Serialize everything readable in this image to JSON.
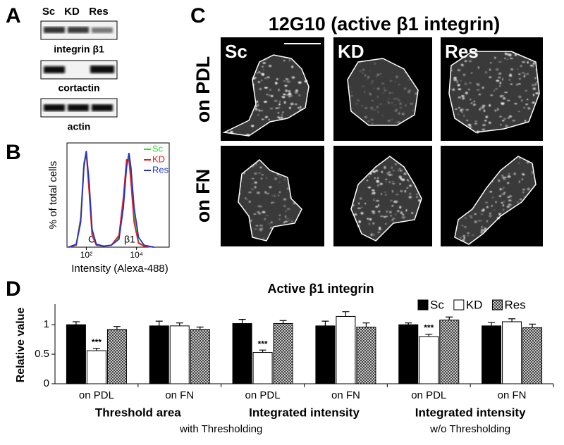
{
  "panel_labels": [
    "A",
    "B",
    "C",
    "D"
  ],
  "western_blot": {
    "lanes": [
      "Sc",
      "KD",
      "Res"
    ],
    "blots": [
      "integrin β1",
      "cortactin",
      "actin"
    ]
  },
  "microscopy": {
    "title": "12G10 (active β1 integrin)",
    "conditions": [
      "on PDL",
      "on FN"
    ],
    "cells": [
      "Sc",
      "KD",
      "Res"
    ]
  },
  "chart_data": [
    {
      "type": "line",
      "y_label": "% of total cells",
      "x_label": "Intensity (Alexa-488)",
      "log_x": true,
      "annotations": [
        "C",
        "β1"
      ],
      "x": [
        20,
        40,
        60,
        80,
        100,
        130,
        170,
        250,
        500,
        1000,
        2000,
        3000,
        4000,
        5000,
        6000,
        8000,
        12000,
        20000,
        50000
      ],
      "xlim": [
        17,
        200000
      ],
      "xticks": [
        {
          "value": 100,
          "label": "10²"
        },
        {
          "value": 10000,
          "label": "10⁴"
        }
      ],
      "ylim": [
        0,
        105
      ],
      "legend": "top-right",
      "series": [
        {
          "name": "Sc",
          "color": "#2ee02e",
          "values": [
            0,
            3,
            30,
            85,
            96,
            60,
            15,
            2,
            1,
            2,
            10,
            45,
            85,
            90,
            70,
            30,
            5,
            1,
            0
          ]
        },
        {
          "name": "KD",
          "color": "#e02222",
          "values": [
            0,
            2,
            28,
            82,
            95,
            55,
            12,
            2,
            1,
            2,
            12,
            50,
            88,
            88,
            65,
            25,
            4,
            1,
            0
          ]
        },
        {
          "name": "Res",
          "color": "#2233cc",
          "values": [
            0,
            3,
            25,
            80,
            97,
            65,
            18,
            3,
            1,
            2,
            8,
            40,
            80,
            95,
            80,
            40,
            10,
            2,
            0
          ]
        }
      ]
    },
    {
      "type": "bar",
      "title": "Active β1 integrin",
      "y_label": "Relative value",
      "categories": [
        "on PDL",
        "on FN",
        "on PDL",
        "on FN",
        "on PDL",
        "on FN"
      ],
      "group_labels": [
        "Threshold area",
        "Integrated intensity",
        "Integrated intensity"
      ],
      "subgroup_labels": [
        "with Thresholding",
        "w/o Thresholding"
      ],
      "ylim": [
        0,
        1.3
      ],
      "yticks": [
        0,
        0.5,
        1
      ],
      "legend": "top-right",
      "series": [
        {
          "name": "Sc",
          "color": "#000000",
          "values": [
            1.0,
            0.98,
            1.02,
            0.98,
            1.0,
            0.98
          ],
          "errors": [
            0.05,
            0.08,
            0.07,
            0.08,
            0.03,
            0.06
          ]
        },
        {
          "name": "KD",
          "color": "#ffffff",
          "values": [
            0.56,
            0.98,
            0.53,
            1.14,
            0.8,
            1.05
          ],
          "errors": [
            0.04,
            0.05,
            0.04,
            0.08,
            0.04,
            0.05
          ],
          "significance": [
            "***",
            null,
            "***",
            null,
            "***",
            null
          ]
        },
        {
          "name": "Res",
          "color": "#9a9a9a",
          "hatch": true,
          "values": [
            0.92,
            0.92,
            1.02,
            0.96,
            1.08,
            0.95
          ],
          "errors": [
            0.05,
            0.04,
            0.05,
            0.07,
            0.05,
            0.06
          ]
        }
      ]
    }
  ]
}
